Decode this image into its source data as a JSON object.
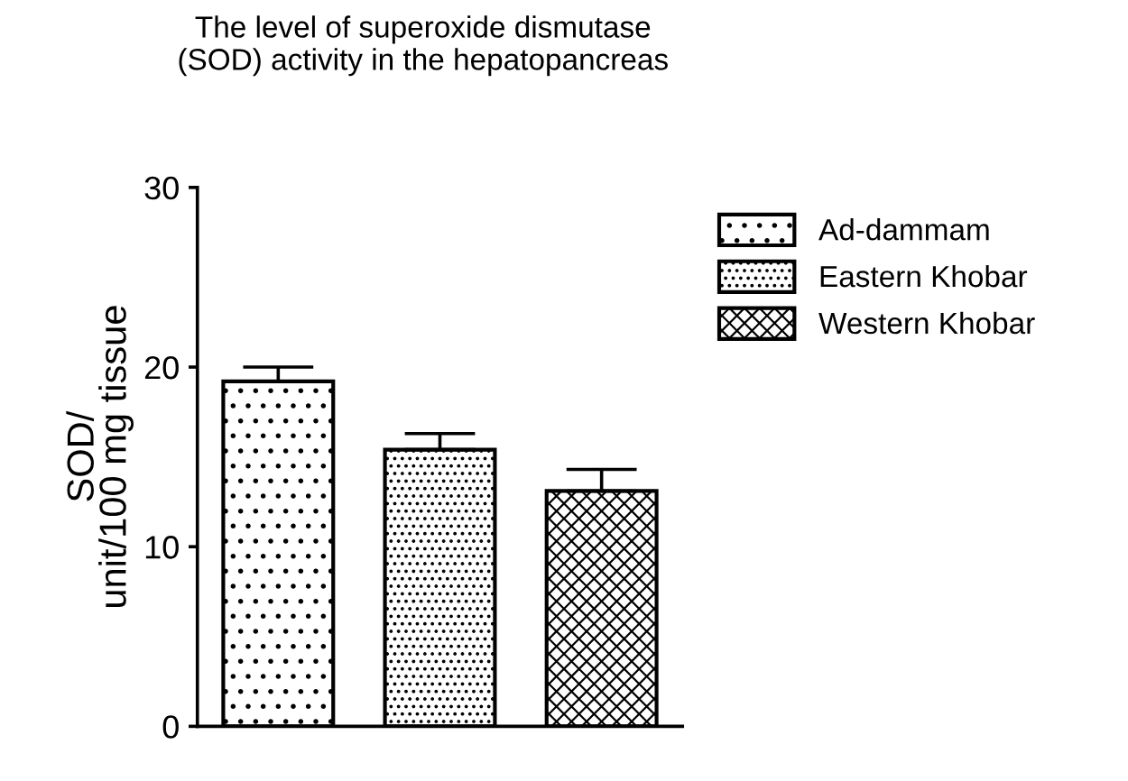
{
  "chart_data": {
    "type": "bar",
    "title": "The level of superoxide dismutase\n(SOD) activity in the hepatopancreas",
    "ylabel": "SOD/\nunit/100 mg tissue",
    "categories": [
      null,
      null,
      null
    ],
    "series": [
      {
        "name": "Ad-dammam",
        "color": "#000000",
        "values": [
          19.2,
          null,
          null
        ],
        "errors": [
          0.8,
          null,
          null
        ]
      },
      {
        "name": "Eastern Khobar",
        "color": "#000000",
        "values": [
          null,
          15.4,
          null
        ],
        "errors": [
          null,
          0.9,
          null
        ]
      },
      {
        "name": "Western Khobar",
        "color": "#000000",
        "values": [
          null,
          null,
          13.1
        ],
        "errors": [
          null,
          null,
          1.2
        ]
      }
    ],
    "ylim": [
      0,
      30
    ],
    "yticks": [
      0,
      10,
      20,
      30
    ],
    "grid": false,
    "legend": "right"
  }
}
